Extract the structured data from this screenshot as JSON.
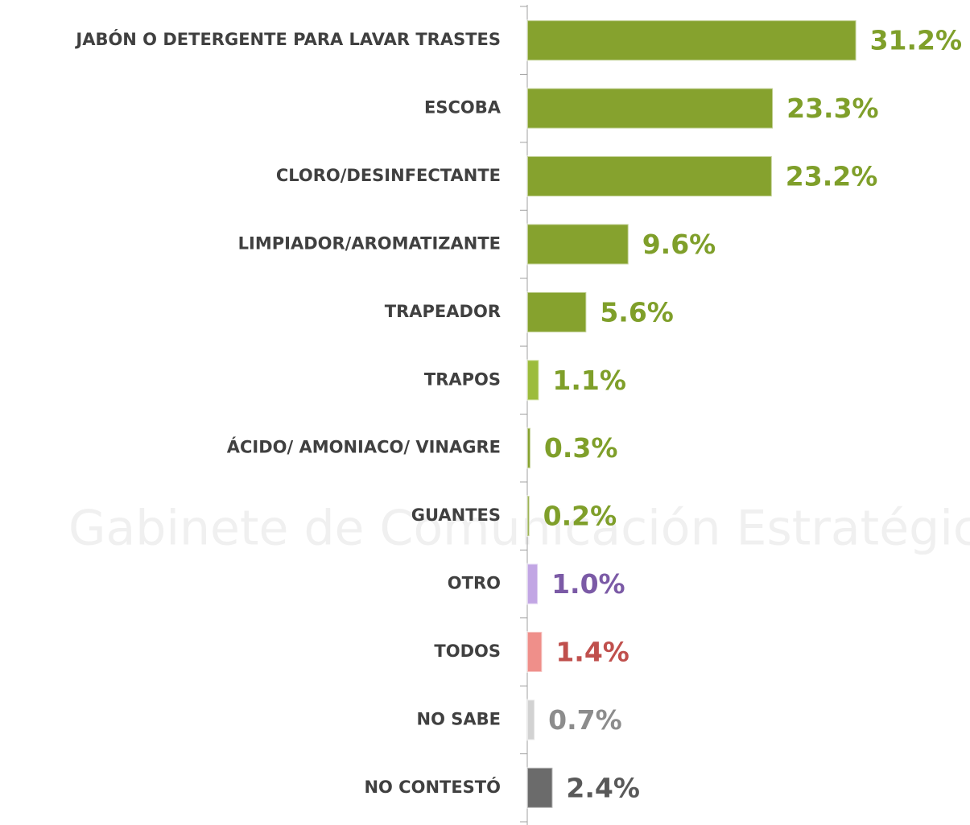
{
  "chart_data": {
    "type": "bar",
    "orientation": "horizontal",
    "watermark": "Gabinete de Comunicación Estratégica",
    "categories": [
      "JABÓN O DETERGENTE PARA LAVAR TRASTES",
      "ESCOBA",
      "CLORO/DESINFECTANTE",
      "LIMPIADOR/AROMATIZANTE",
      "TRAPEADOR",
      "TRAPOS",
      "ÁCIDO/ AMONIACO/ VINAGRE",
      "GUANTES",
      "OTRO",
      "TODOS",
      "NO SABE",
      "NO CONTESTÓ"
    ],
    "values": [
      31.2,
      23.3,
      23.2,
      9.6,
      5.6,
      1.1,
      0.3,
      0.2,
      1.0,
      1.4,
      0.7,
      2.4
    ],
    "value_labels": [
      "31.2%",
      "23.3%",
      "23.2%",
      "9.6%",
      "5.6%",
      "1.1%",
      "0.3%",
      "0.2%",
      "1.0%",
      "1.4%",
      "0.7%",
      "2.4%"
    ],
    "colors": [
      "#86a22e",
      "#86a22e",
      "#86a22e",
      "#86a22e",
      "#86a22e",
      "#9cbc3c",
      "#86a22e",
      "#86a22e",
      "#c2a6e4",
      "#ef8f8a",
      "#d2d2d2",
      "#6b6b6b"
    ],
    "label_colors": [
      "#7f9f2a",
      "#7f9f2a",
      "#7f9f2a",
      "#7f9f2a",
      "#7f9f2a",
      "#7f9f2a",
      "#7f9f2a",
      "#7f9f2a",
      "#7b5aa6",
      "#c0504d",
      "#8c8c8c",
      "#595959"
    ],
    "xlim": [
      0,
      42
    ]
  }
}
